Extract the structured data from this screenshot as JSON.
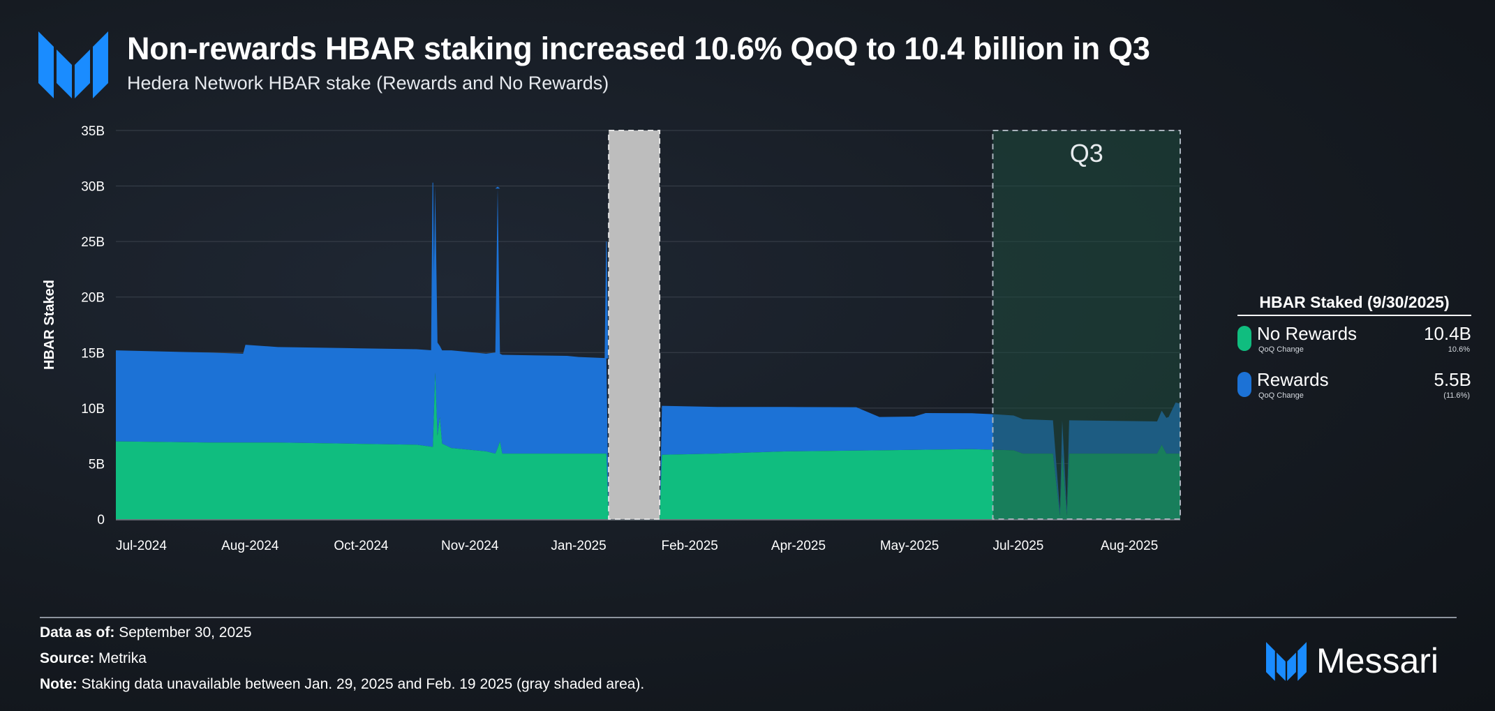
{
  "header": {
    "title": "Non-rewards HBAR staking increased 10.6% QoQ to 10.4 billion in Q3",
    "subtitle": "Hedera Network HBAR stake (Rewards and No Rewards)"
  },
  "colors": {
    "no_rewards": "#10bd7f",
    "rewards": "#1c72d6",
    "gap": "#bdbdbd",
    "highlight": "#1f4a3e",
    "accent": "#1a8cff"
  },
  "chart_data": {
    "type": "area",
    "stacked": true,
    "ylabel": "HBAR Staked",
    "xlabel": "",
    "ylim": [
      0,
      35
    ],
    "y_ticks": [
      "0",
      "5B",
      "10B",
      "15B",
      "20B",
      "25B",
      "30B",
      "35B"
    ],
    "x_range_days": [
      0,
      460
    ],
    "x_ticks": [
      {
        "label": "Jul-2024",
        "day": 11
      },
      {
        "label": "Aug-2024",
        "day": 58
      },
      {
        "label": "Oct-2024",
        "day": 106
      },
      {
        "label": "Nov-2024",
        "day": 153
      },
      {
        "label": "Jan-2025",
        "day": 200
      },
      {
        "label": "Feb-2025",
        "day": 248
      },
      {
        "label": "Apr-2025",
        "day": 295
      },
      {
        "label": "May-2025",
        "day": 343
      },
      {
        "label": "Jul-2025",
        "day": 390
      },
      {
        "label": "Aug-2025",
        "day": 438
      }
    ],
    "series": [
      {
        "name": "No Rewards",
        "points": [
          [
            0,
            7.0
          ],
          [
            40,
            6.9
          ],
          [
            70,
            6.9
          ],
          [
            100,
            6.8
          ],
          [
            130,
            6.7
          ],
          [
            137,
            6.5
          ],
          [
            138,
            13.2
          ],
          [
            139,
            7.5
          ],
          [
            140,
            9.2
          ],
          [
            141,
            6.8
          ],
          [
            145,
            6.4
          ],
          [
            160,
            6.1
          ],
          [
            164,
            5.9
          ],
          [
            165,
            6.4
          ],
          [
            166,
            7.0
          ],
          [
            167,
            5.9
          ],
          [
            200,
            5.9
          ],
          [
            212,
            5.9
          ],
          [
            213,
            0
          ],
          [
            235,
            0
          ],
          [
            236,
            5.8
          ],
          [
            260,
            5.9
          ],
          [
            290,
            6.1
          ],
          [
            330,
            6.2
          ],
          [
            370,
            6.3
          ],
          [
            388,
            6.2
          ],
          [
            392,
            5.9
          ],
          [
            405,
            5.9
          ],
          [
            408,
            0.3
          ],
          [
            409,
            5.9
          ],
          [
            411,
            0.3
          ],
          [
            412,
            5.9
          ],
          [
            450,
            5.9
          ],
          [
            452,
            6.7
          ],
          [
            454,
            5.9
          ],
          [
            460,
            5.9
          ]
        ]
      },
      {
        "name": "Rewards",
        "points": [
          [
            0,
            8.2
          ],
          [
            40,
            8.1
          ],
          [
            55,
            8.0
          ],
          [
            56,
            8.8
          ],
          [
            70,
            8.6
          ],
          [
            100,
            8.6
          ],
          [
            130,
            8.6
          ],
          [
            137,
            8.7
          ],
          [
            138,
            16.8
          ],
          [
            139,
            8.4
          ],
          [
            140,
            6.4
          ],
          [
            141,
            8.4
          ],
          [
            145,
            8.8
          ],
          [
            160,
            8.8
          ],
          [
            164,
            9.1
          ],
          [
            165,
            23.4
          ],
          [
            166,
            7.9
          ],
          [
            167,
            8.9
          ],
          [
            195,
            8.8
          ],
          [
            200,
            8.7
          ],
          [
            212,
            8.6
          ],
          [
            213,
            0
          ],
          [
            235,
            0
          ],
          [
            236,
            4.4
          ],
          [
            260,
            4.2
          ],
          [
            290,
            4.0
          ],
          [
            320,
            3.9
          ],
          [
            330,
            3.0
          ],
          [
            345,
            3.0
          ],
          [
            350,
            3.3
          ],
          [
            380,
            3.2
          ],
          [
            392,
            3.1
          ],
          [
            405,
            3.0
          ],
          [
            408,
            0.5
          ],
          [
            409,
            3.0
          ],
          [
            411,
            0.5
          ],
          [
            412,
            3.0
          ],
          [
            450,
            2.9
          ],
          [
            455,
            3.3
          ],
          [
            458,
            4.6
          ],
          [
            460,
            4.5
          ]
        ]
      }
    ],
    "spikes": [
      {
        "series": "Rewards",
        "day": 137,
        "total": 30.3
      },
      {
        "series": "Rewards",
        "day": 165,
        "total": 29.9
      },
      {
        "series": "Rewards",
        "day": 212,
        "total": 25.0
      }
    ],
    "gap_range_days": [
      213,
      235
    ],
    "highlight": {
      "label": "Q3",
      "range_days": [
        379,
        460
      ]
    },
    "legend": {
      "title": "HBAR Staked (9/30/2025)",
      "items": [
        {
          "name": "No Rewards",
          "sub": "QoQ Change",
          "value": "10.4B",
          "change": "10.6%"
        },
        {
          "name": "Rewards",
          "sub": "QoQ Change",
          "value": "5.5B",
          "change": "(11.6%)"
        }
      ]
    }
  },
  "footer": {
    "data_as_of_label": "Data as of:",
    "data_as_of": "September 30, 2025",
    "source_label": "Source:",
    "source": "Metrika",
    "note_label": "Note:",
    "note": "Staking data unavailable between Jan. 29, 2025 and Feb. 19 2025 (gray shaded area)."
  },
  "brand": {
    "name": "Messari"
  }
}
